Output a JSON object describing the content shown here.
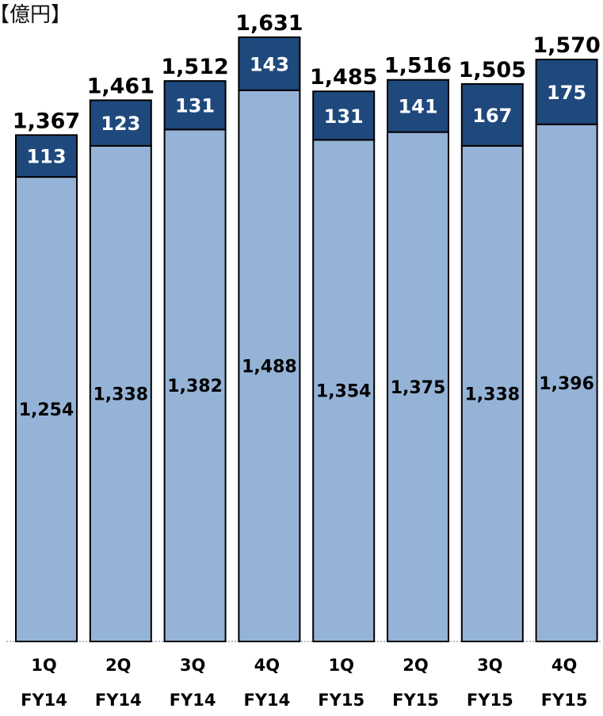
{
  "unit_label": "【億円】",
  "chart_data": {
    "type": "bar",
    "stacked": true,
    "title": "",
    "xlabel": "",
    "ylabel": "",
    "ylim": [
      0,
      1631
    ],
    "categories": [
      [
        "1Q",
        "FY14"
      ],
      [
        "2Q",
        "FY14"
      ],
      [
        "3Q",
        "FY14"
      ],
      [
        "4Q",
        "FY14"
      ],
      [
        "1Q",
        "FY15"
      ],
      [
        "2Q",
        "FY15"
      ],
      [
        "3Q",
        "FY15"
      ],
      [
        "4Q",
        "FY15"
      ]
    ],
    "series": [
      {
        "color": "#95b3d7",
        "values": [
          1254,
          1338,
          1382,
          1488,
          1354,
          1375,
          1338,
          1396
        ],
        "labels": [
          "1,254",
          "1,338",
          "1,382",
          "1,488",
          "1,354",
          "1,375",
          "1,338",
          "1,396"
        ]
      },
      {
        "color": "#1f497d",
        "values": [
          113,
          123,
          131,
          143,
          131,
          141,
          167,
          175
        ],
        "labels": [
          "113",
          "123",
          "131",
          "143",
          "131",
          "141",
          "167",
          "175"
        ]
      }
    ],
    "totals": [
      1367,
      1461,
      1512,
      1631,
      1485,
      1516,
      1505,
      1570
    ],
    "total_labels": [
      "1,367",
      "1,461",
      "1,512",
      "1,631",
      "1,485",
      "1,516",
      "1,505",
      "1,570"
    ],
    "legend": "none",
    "grid": false
  }
}
